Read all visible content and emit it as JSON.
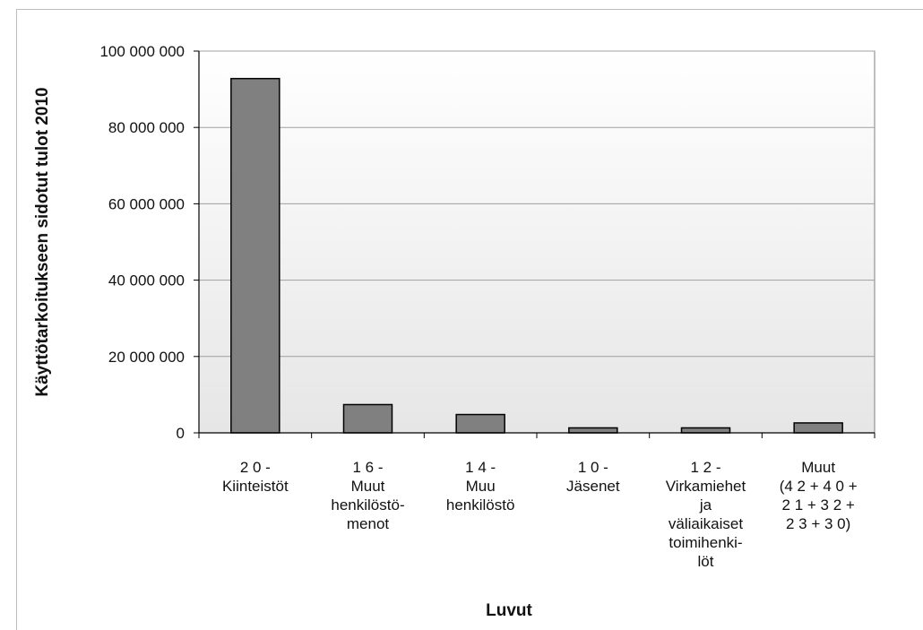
{
  "chart_data": {
    "type": "bar",
    "title": "",
    "xlabel": "Luvut",
    "ylabel": "Käyttötarkoitukseen sidotut tulot 2010",
    "ylim": [
      0,
      100000000
    ],
    "yticks": [
      "0",
      "20 000 000",
      "40 000 000",
      "60 000 000",
      "80 000 000",
      "100 000 000"
    ],
    "categories": [
      [
        "2 0 -",
        "Kiinteistöt"
      ],
      [
        "1 6 -",
        "Muut",
        "henkilöstö-",
        "menot"
      ],
      [
        "1 4 -",
        "Muu",
        "henkilöstö"
      ],
      [
        "1 0 -",
        "Jäsenet"
      ],
      [
        "1 2 -",
        "Virkamiehet",
        "ja",
        "väliaikaiset",
        "toimihenki-",
        "löt"
      ],
      [
        "Muut",
        "(4 2 + 4 0 +",
        "2 1 + 3 2 +",
        "2 3 + 3 0)"
      ]
    ],
    "values": [
      92800000,
      7400000,
      4800000,
      1300000,
      1300000,
      2600000
    ],
    "grid": true,
    "colors": {
      "bar": "#808080",
      "bar_stroke": "#000000",
      "grid": "#a0a0a0",
      "axis": "#808080"
    }
  }
}
